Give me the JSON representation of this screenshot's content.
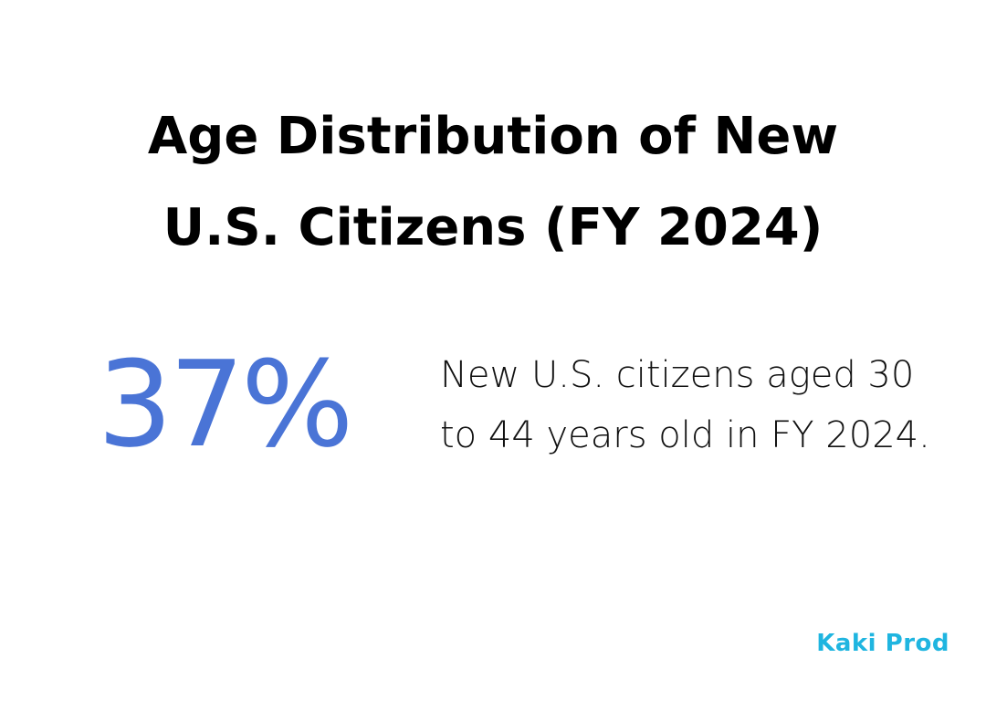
{
  "title": {
    "line1": "Age Distribution of New",
    "line2": "U.S. Citizens (FY 2024)"
  },
  "stat": {
    "value": "37%",
    "percent": 37,
    "description": "New U.S. citizens aged 30 to 44 years old in FY 2024."
  },
  "brand": {
    "logo_text": "Kaki Prod"
  },
  "colors": {
    "background": "#ffffff",
    "title": "#000000",
    "stat": "#4a74d6",
    "description": "#111111",
    "logo": "#1fb5e0"
  }
}
